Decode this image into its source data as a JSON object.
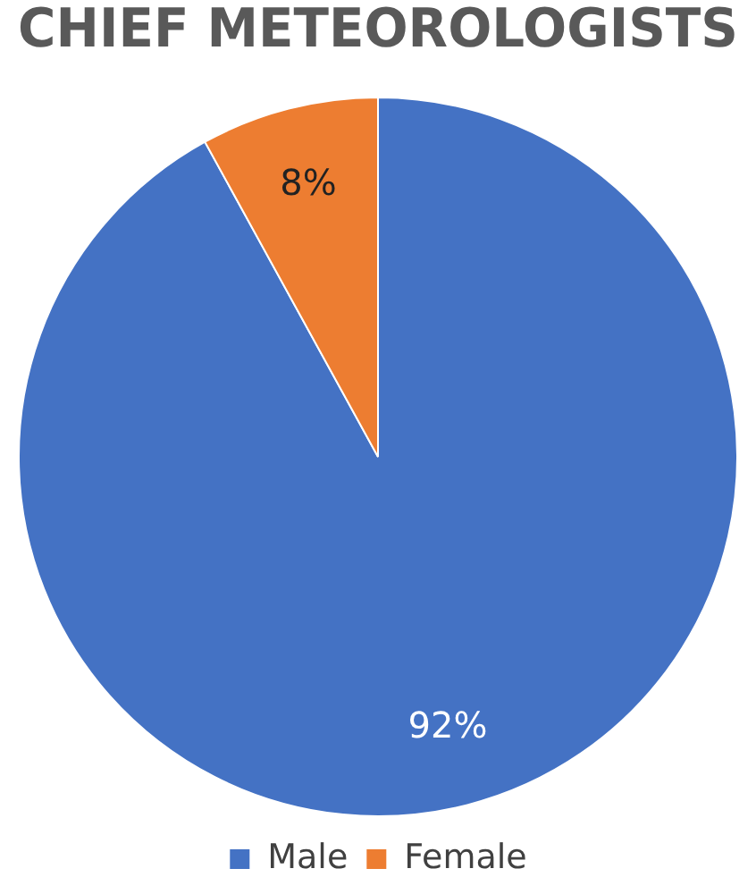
{
  "chart_data": {
    "type": "pie",
    "title": "CHIEF METEOROLOGISTS",
    "categories": [
      "Male",
      "Female"
    ],
    "values": [
      92,
      8
    ],
    "colors": [
      "#4472c4",
      "#ed7d31"
    ],
    "value_labels": [
      "92%",
      "8%"
    ],
    "legend": "bottom"
  }
}
